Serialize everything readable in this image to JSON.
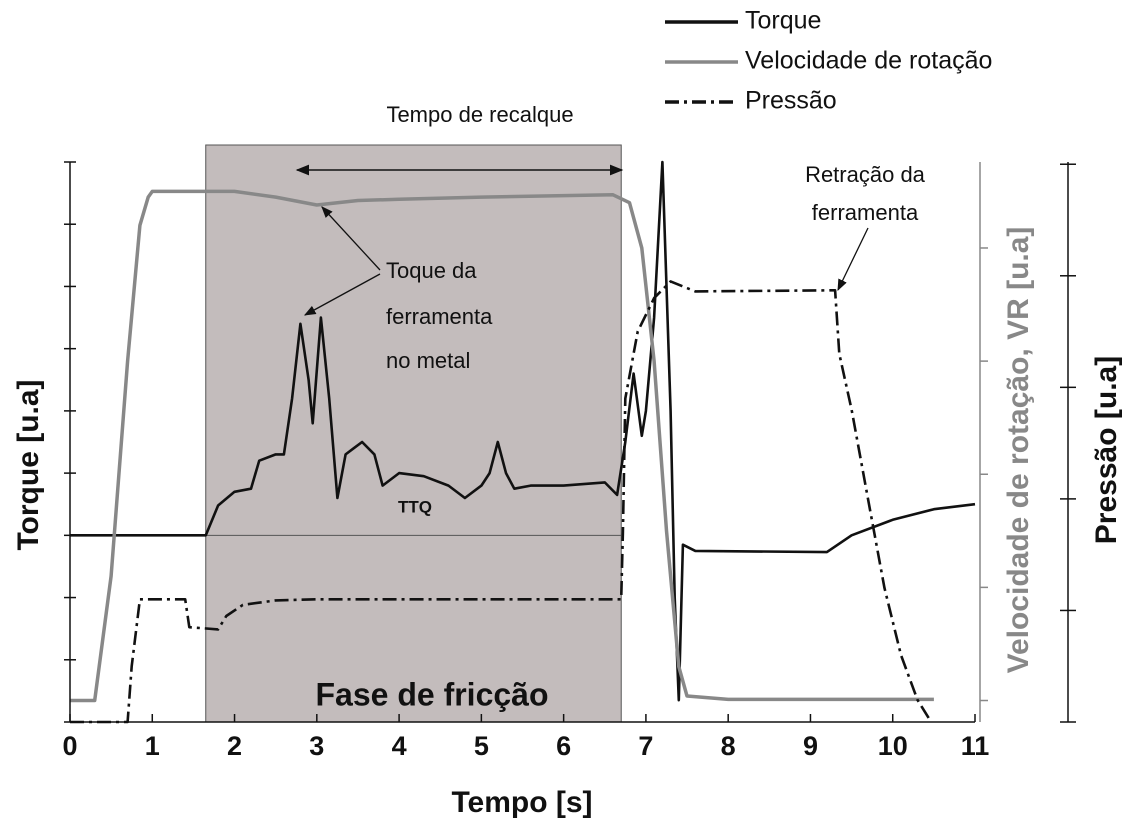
{
  "chart_data": {
    "type": "line",
    "xlabel": "Tempo [s]",
    "ylabel": "Torque [u.a]",
    "y2label": "Velocidade de rotação, VR [u.a]",
    "y3label": "Pressão [u.a]",
    "xlim": [
      0,
      11
    ],
    "xticks": [
      0,
      1,
      2,
      3,
      4,
      5,
      6,
      7,
      8,
      9,
      10,
      11
    ],
    "ylim": [
      -3,
      6
    ],
    "yticks": [
      -3,
      -2,
      -1,
      0,
      1,
      2,
      3,
      4,
      5,
      6
    ],
    "y2lim": [
      -0.19,
      4.76
    ],
    "y2ticks": [
      0,
      1,
      2,
      3,
      4
    ],
    "y3lim": [
      0,
      5.02
    ],
    "y3ticks": [
      0,
      1,
      2,
      3,
      4,
      5
    ],
    "shaded_region": [
      1.65,
      6.7
    ],
    "series": [
      {
        "name": "Torque",
        "color": "#111111",
        "dash": "solid",
        "axis": "y",
        "x": [
          0,
          1.65,
          1.8,
          2.0,
          2.2,
          2.3,
          2.5,
          2.6,
          2.7,
          2.8,
          2.9,
          2.95,
          3.05,
          3.15,
          3.25,
          3.35,
          3.45,
          3.55,
          3.7,
          3.8,
          4.0,
          4.3,
          4.6,
          4.8,
          5.0,
          5.1,
          5.2,
          5.3,
          5.4,
          5.6,
          6.0,
          6.5,
          6.65,
          6.75,
          6.85,
          6.95,
          7.0,
          7.1,
          7.2,
          7.3,
          7.35,
          7.4,
          7.45,
          7.6,
          9.2,
          9.5,
          10.0,
          10.5,
          11
        ],
        "values": [
          0,
          0,
          0.48,
          0.7,
          0.75,
          1.2,
          1.3,
          1.3,
          2.2,
          3.4,
          2.5,
          1.8,
          3.5,
          2.2,
          0.6,
          1.3,
          1.4,
          1.5,
          1.3,
          0.8,
          1.0,
          0.95,
          0.8,
          0.6,
          0.8,
          1.0,
          1.5,
          1.0,
          0.75,
          0.8,
          0.8,
          0.85,
          0.65,
          1.5,
          2.6,
          1.6,
          2.0,
          3.5,
          6.0,
          2.0,
          -1.0,
          -2.65,
          -0.15,
          -0.25,
          -0.27,
          0.0,
          0.25,
          0.42,
          0.5
        ]
      },
      {
        "name": "Velocidade de rotação",
        "color": "#888888",
        "dash": "solid",
        "axis": "y2",
        "x": [
          0,
          0.2,
          0.3,
          0.5,
          0.7,
          0.85,
          0.95,
          1.0,
          2.0,
          2.5,
          3.0,
          3.5,
          4.0,
          5.0,
          6.6,
          6.8,
          6.95,
          7.1,
          7.25,
          7.4,
          7.5,
          8.0,
          10.5
        ],
        "values": [
          0,
          0,
          0,
          1.1,
          3.0,
          4.2,
          4.45,
          4.5,
          4.5,
          4.45,
          4.38,
          4.42,
          4.43,
          4.45,
          4.47,
          4.4,
          4.0,
          3.0,
          1.5,
          0.3,
          0.04,
          0.01,
          0.01
        ]
      },
      {
        "name": "Pressão",
        "color": "#111111",
        "dash": "dashdot",
        "axis": "y3",
        "x": [
          0,
          0.7,
          0.75,
          0.85,
          1.4,
          1.45,
          1.8,
          1.9,
          2.1,
          2.5,
          3.0,
          6.7,
          6.72,
          6.75,
          6.9,
          7.1,
          7.3,
          7.6,
          9.3,
          9.35,
          9.5,
          9.7,
          9.9,
          10.1,
          10.3,
          10.45
        ],
        "values": [
          0,
          0,
          0.5,
          1.1,
          1.1,
          0.85,
          0.83,
          0.95,
          1.05,
          1.09,
          1.1,
          1.1,
          1.7,
          2.9,
          3.5,
          3.8,
          3.95,
          3.86,
          3.87,
          3.3,
          2.8,
          2.0,
          1.2,
          0.6,
          0.2,
          0.02
        ]
      }
    ],
    "annotations": {
      "recalque": "Tempo de recalque",
      "toque": [
        "Toque da",
        "ferramenta",
        "no metal"
      ],
      "retracao": [
        "Retração da",
        "ferramenta"
      ],
      "ttq": "TTQ",
      "fase": "Fase de fricção"
    }
  }
}
